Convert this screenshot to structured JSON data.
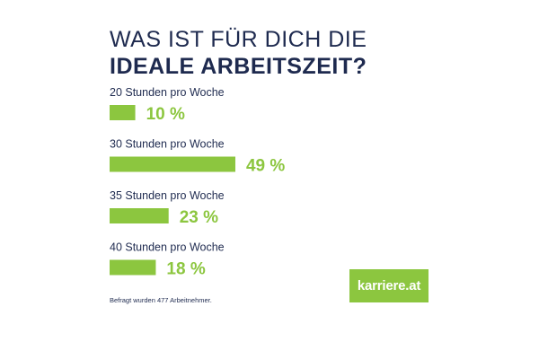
{
  "title": {
    "line1": "WAS IST FÜR DICH DIE",
    "line2": "IDEALE ARBEITSZEIT?"
  },
  "chart_data": {
    "type": "bar",
    "orientation": "horizontal",
    "categories": [
      "20 Stunden pro Woche",
      "30 Stunden pro Woche",
      "35 Stunden pro Woche",
      "40 Stunden pro Woche"
    ],
    "values": [
      10,
      49,
      23,
      18
    ],
    "value_labels": [
      "10 %",
      "49 %",
      "23 %",
      "18 %"
    ],
    "unit": "%",
    "xlim": [
      0,
      100
    ],
    "grid": false,
    "legend": "none"
  },
  "colors": {
    "bar": "#8cc63f",
    "title": "#1e2a4f",
    "background": "#ffffff",
    "logo_bg": "#8cc63f"
  },
  "footnote": "Befragt wurden 477 Arbeitnehmer.",
  "logo": {
    "text": "karriere.at"
  }
}
